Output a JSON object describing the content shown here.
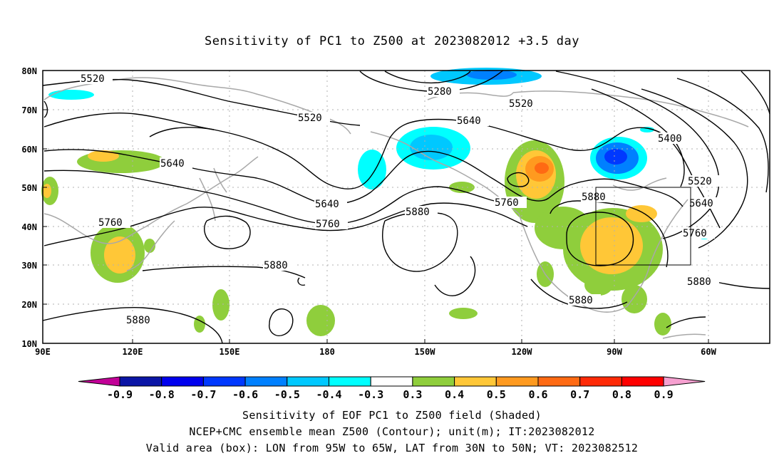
{
  "title": "Sensitivity of PC1 to Z500 at 2023082012 +3.5 day",
  "lat_labels": [
    "80N",
    "70N",
    "60N",
    "50N",
    "40N",
    "30N",
    "20N",
    "10N"
  ],
  "lon_labels": [
    "90E",
    "120E",
    "150E",
    "180",
    "150W",
    "120W",
    "90W",
    "60W"
  ],
  "contour_labels": {
    "c5520_a": "5520",
    "c5520_b": "5520",
    "c5520_c": "5520",
    "c5520_d": "5520",
    "c5280": "5280",
    "c5400": "5400",
    "c5640_a": "5640",
    "c5640_b": "5640",
    "c5640_c": "5640",
    "c5640_d": "5640",
    "c5760_a": "5760",
    "c5760_b": "5760",
    "c5760_c": "5760",
    "c5760_d": "5760",
    "c5880_a": "5880",
    "c5880_b": "5880",
    "c5880_c": "5880",
    "c5880_d": "5880",
    "c5880_e": "5880",
    "c5880_f": "5880"
  },
  "colorbar": {
    "labels": [
      "-0.9",
      "-0.8",
      "-0.7",
      "-0.6",
      "-0.5",
      "-0.4",
      "-0.3",
      "0.3",
      "0.4",
      "0.5",
      "0.6",
      "0.7",
      "0.8",
      "0.9"
    ],
    "colors": [
      "#c20097",
      "#0b15a6",
      "#0000ee",
      "#0038ff",
      "#0080ff",
      "#00c8ff",
      "#00ffff",
      "#ffffff",
      "#8fce3c",
      "#ffc737",
      "#ff9a1f",
      "#ff6a13",
      "#ff2a07",
      "#ff0000",
      "#f6a0d0"
    ]
  },
  "valid_box": {
    "lon_min": -95,
    "lon_max": -65,
    "lat_min": 30,
    "lat_max": 50
  },
  "footer": {
    "line1": "Sensitivity of EOF PC1 to Z500 field (Shaded)",
    "line2": "NCEP+CMC ensemble mean Z500 (Contour); unit(m); IT:2023082012",
    "line3": "Valid area (box): LON from 95W to 65W, LAT from 30N to 50N; VT: 2023082512"
  }
}
